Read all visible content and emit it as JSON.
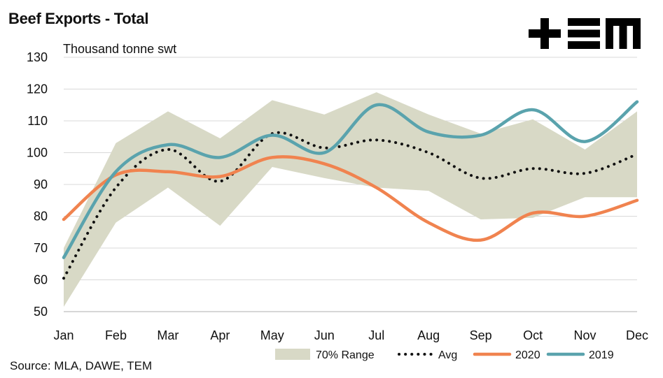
{
  "title": "Beef Exports - Total",
  "source": "Source: MLA, DAWE, TEM",
  "logo_text": "+EM",
  "chart_data": {
    "type": "line",
    "unit_label": "Thousand tonne swt",
    "categories": [
      "Jan",
      "Feb",
      "Mar",
      "Apr",
      "May",
      "Jun",
      "Jul",
      "Aug",
      "Sep",
      "Oct",
      "Nov",
      "Dec"
    ],
    "ylim": [
      50,
      130
    ],
    "yticks": [
      50,
      60,
      70,
      80,
      90,
      100,
      110,
      120,
      130
    ],
    "grid": true,
    "legend_position": "bottom-right",
    "range_band": {
      "name": "70% Range",
      "color": "#d8d9c6",
      "upper": [
        70,
        103,
        113,
        104.5,
        116.5,
        112,
        119,
        112,
        106,
        110.5,
        101,
        113
      ],
      "lower": [
        51.5,
        78,
        89,
        77,
        95.5,
        92,
        89,
        88,
        79,
        79.5,
        86,
        86
      ]
    },
    "series": [
      {
        "name": "Avg",
        "style": "dotted",
        "color": "#111111",
        "values": [
          60.5,
          89,
          101,
          91,
          106,
          101.5,
          104,
          100,
          92,
          95,
          93.5,
          99.5
        ]
      },
      {
        "name": "2020",
        "style": "solid",
        "color": "#f0834f",
        "values": [
          79,
          93,
          94,
          92.5,
          98.5,
          96.5,
          89,
          78,
          72.5,
          81,
          80,
          85
        ]
      },
      {
        "name": "2019",
        "style": "solid",
        "color": "#5aa3ad",
        "values": [
          67,
          94,
          102.5,
          98.5,
          105.5,
          100,
          115,
          106.5,
          105.5,
          113.5,
          103.5,
          116
        ]
      }
    ]
  }
}
